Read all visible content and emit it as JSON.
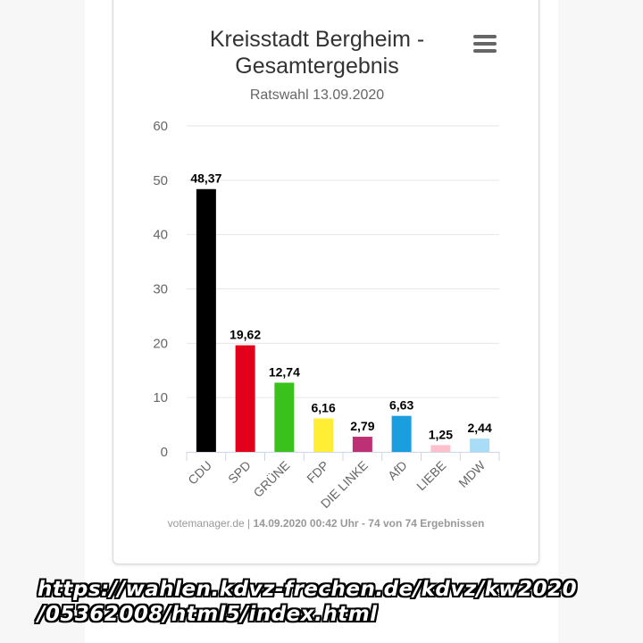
{
  "chart_data": {
    "type": "bar",
    "title": "Kreisstadt Bergheim - Gesamtergebnis",
    "subtitle": "Ratswahl 13.09.2020",
    "categories": [
      "CDU",
      "SPD",
      "GRÜNE",
      "FDP",
      "DIE LINKE",
      "AfD",
      "LIEBE",
      "MDW"
    ],
    "values": [
      48.37,
      19.62,
      12.74,
      6.16,
      2.79,
      6.63,
      1.25,
      2.44
    ],
    "data_labels": [
      "48,37",
      "19,62",
      "12,74",
      "6,16",
      "2,79",
      "6,63",
      "1,25",
      "2,44"
    ],
    "colors": [
      "#000000",
      "#e2001a",
      "#3ac11c",
      "#ffee33",
      "#be3075",
      "#1a9ee0",
      "#ffc0cb",
      "#a8dcf7"
    ],
    "ylim": [
      0,
      60
    ],
    "yticks": [
      "0",
      "10",
      "20",
      "30",
      "40",
      "50",
      "60"
    ],
    "xlabel": "",
    "ylabel": "",
    "grid": true,
    "legend": "none"
  },
  "menu_icon": "hamburger-menu-icon",
  "credits": {
    "link": "votemanager.de",
    "separator": " | ",
    "stamp": "14.09.2020 00:42 Uhr - 74 von 74 Ergebnissen"
  },
  "overlay_url": {
    "line1": "https://wahlen.kdvz-frechen.de/kdvz/kw2020",
    "line2": "/05362008/html5/index.html"
  }
}
